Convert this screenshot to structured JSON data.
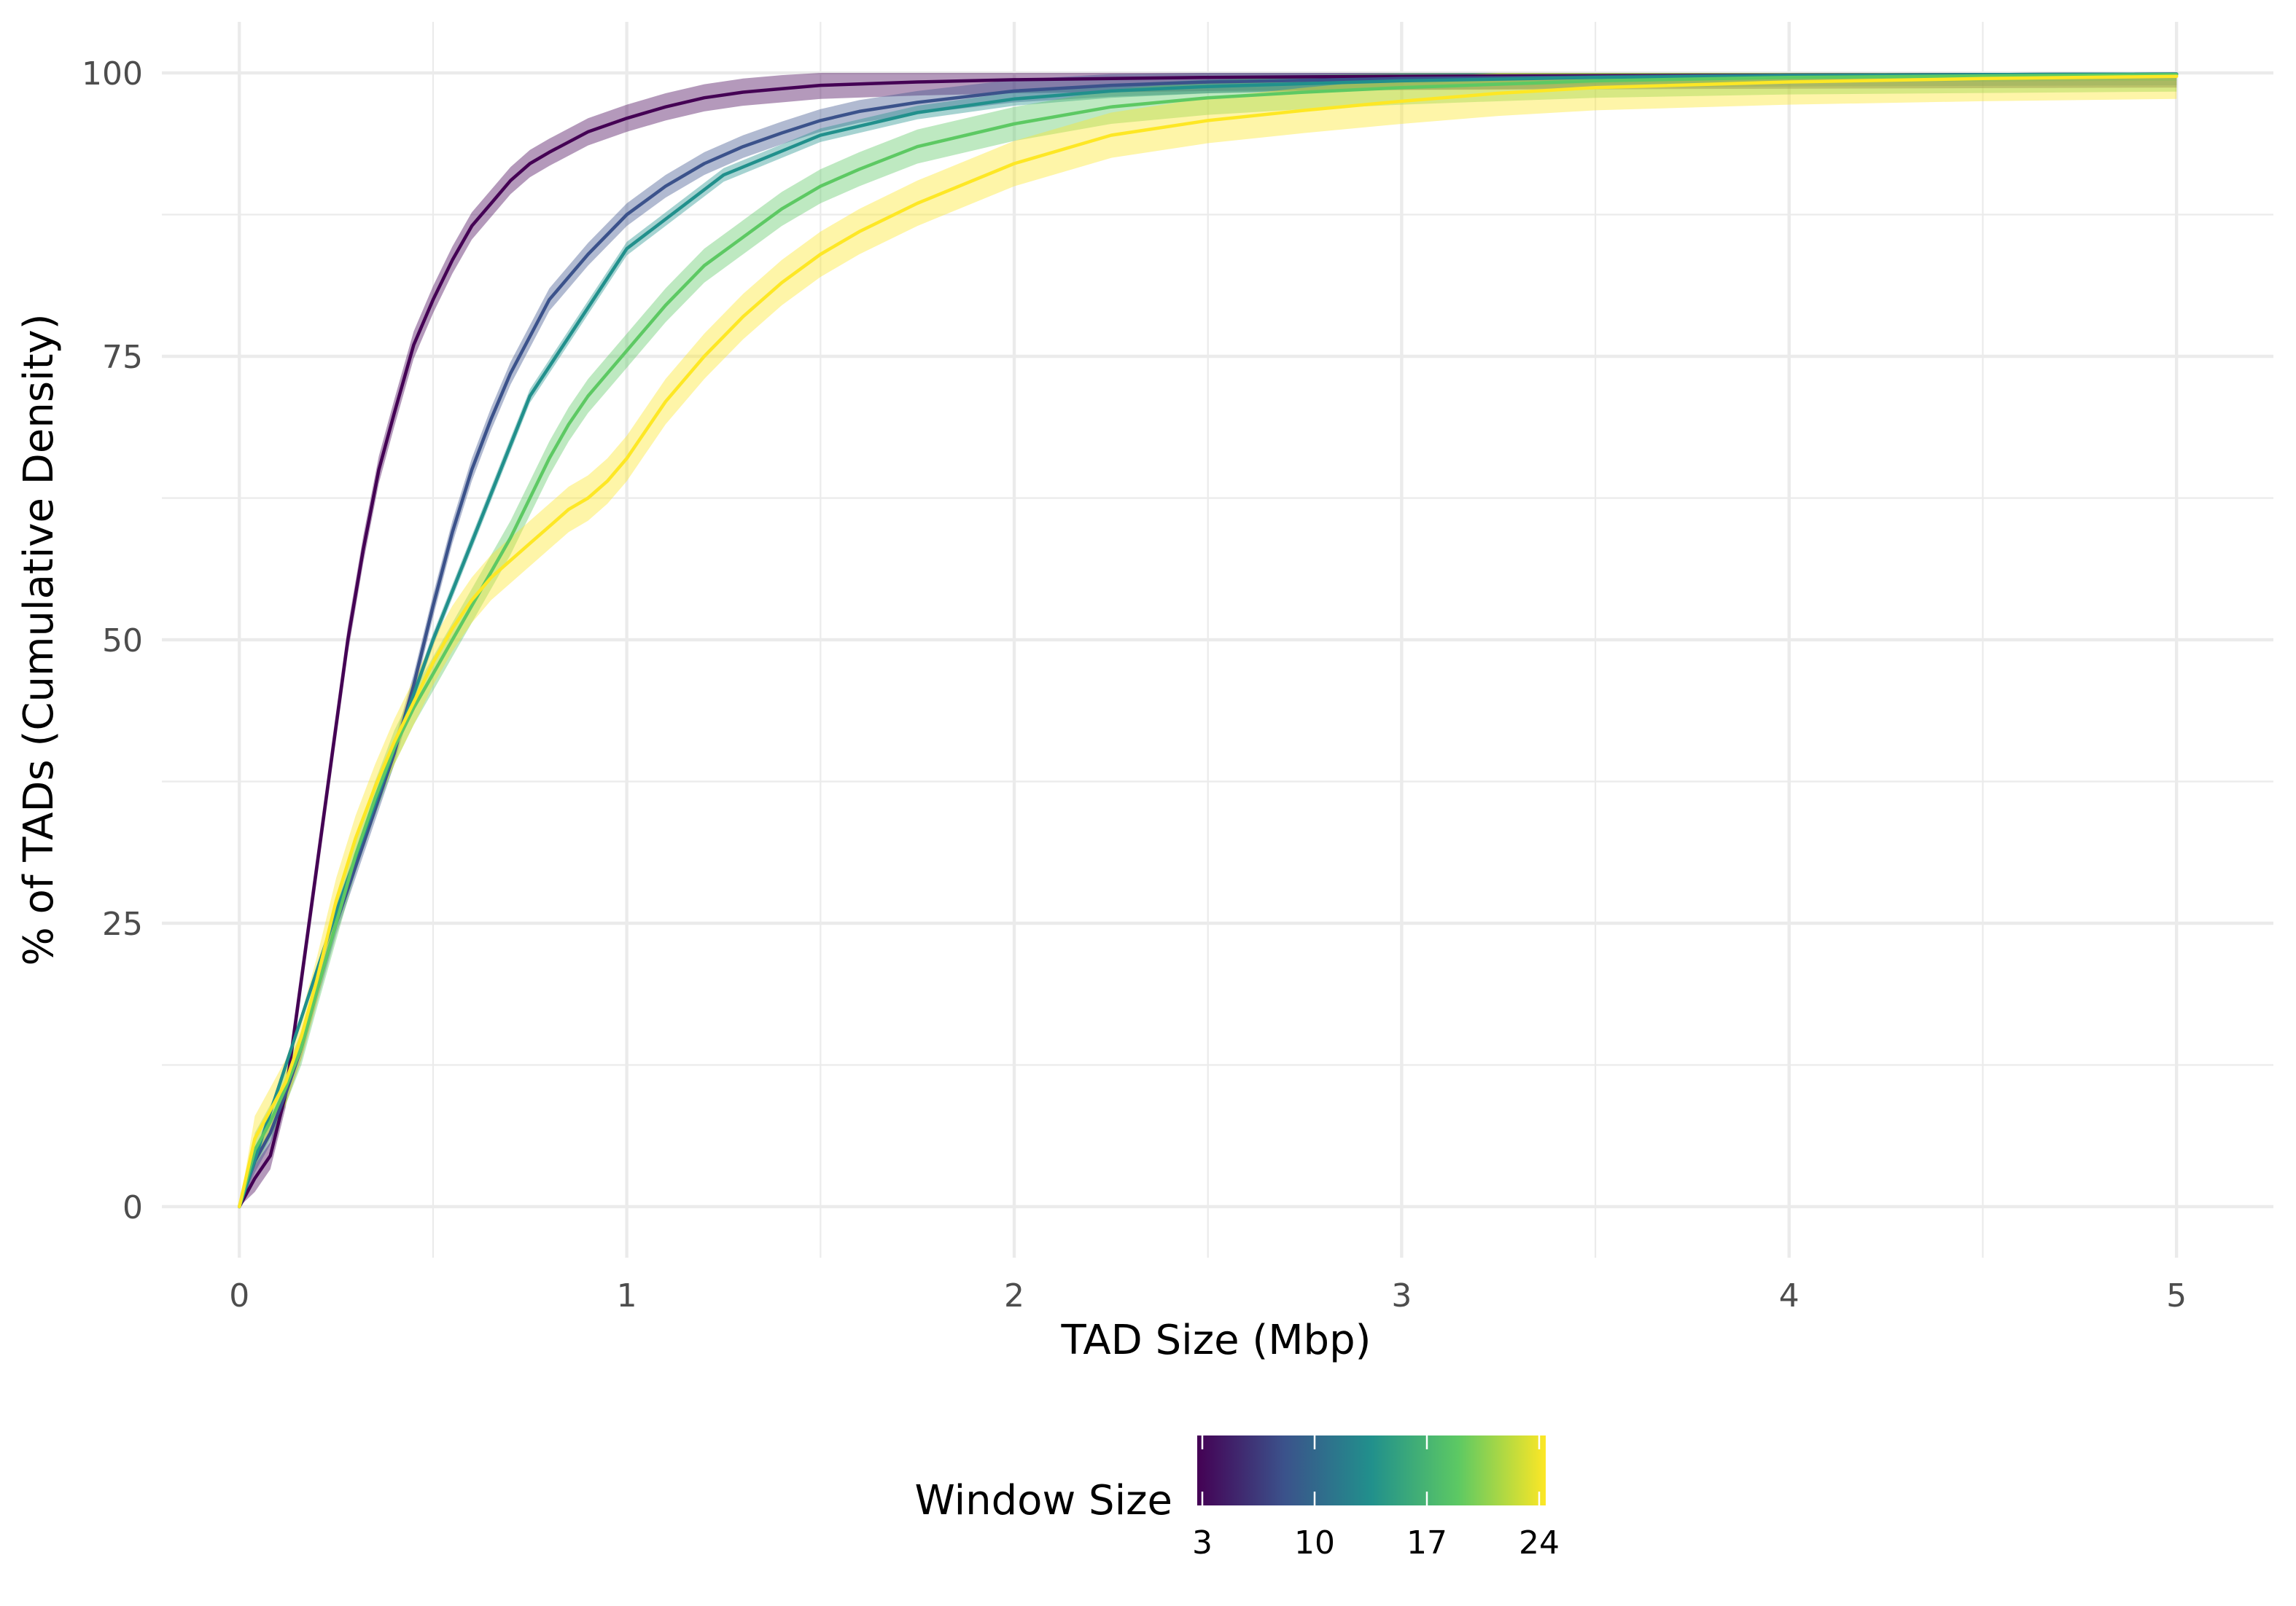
{
  "chart_data": {
    "type": "line",
    "title": "",
    "xlabel": "TAD Size (Mbp)",
    "ylabel": "% of TADs (Cumulative Density)",
    "xlim": [
      -0.2,
      5.25
    ],
    "ylim": [
      -4.5,
      104.5
    ],
    "x_ticks": [
      0,
      1,
      2,
      3,
      4,
      5
    ],
    "x_tick_labels": [
      "0",
      "1",
      "2",
      "3",
      "4",
      "5"
    ],
    "y_ticks": [
      0,
      25,
      50,
      75,
      100
    ],
    "y_tick_labels": [
      "0",
      "25",
      "50",
      "75",
      "100"
    ],
    "grid": true,
    "legend": {
      "title": "Window Size",
      "position": "bottom",
      "type": "colorbar",
      "range": [
        3,
        24
      ],
      "ticks": [
        3,
        10,
        17,
        24
      ],
      "tick_labels": [
        "3",
        "10",
        "17",
        "24"
      ],
      "colormap": "viridis",
      "colors": [
        "#440154",
        "#3b528b",
        "#21908c",
        "#5dc963",
        "#fde725"
      ]
    },
    "series": [
      {
        "color": "#440154",
        "ribbon_width": 1.2,
        "x": [
          0,
          0.04,
          0.08,
          0.12,
          0.16,
          0.2,
          0.24,
          0.28,
          0.32,
          0.36,
          0.4,
          0.45,
          0.5,
          0.55,
          0.6,
          0.65,
          0.7,
          0.75,
          0.8,
          0.9,
          1.0,
          1.1,
          1.2,
          1.3,
          1.4,
          1.5,
          1.75,
          2.0,
          2.5,
          3.0,
          4.0,
          5.0
        ],
        "y": [
          0,
          2.5,
          4.5,
          10,
          20,
          30,
          40,
          50,
          58,
          65,
          70,
          76,
          80,
          83.5,
          86.5,
          88.5,
          90.5,
          92,
          93,
          94.8,
          96,
          97,
          97.8,
          98.3,
          98.6,
          98.9,
          99.2,
          99.4,
          99.6,
          99.7,
          99.8,
          99.9
        ]
      },
      {
        "color": "#3b528b",
        "ribbon_width": 1.0,
        "x": [
          0,
          0.04,
          0.08,
          0.12,
          0.16,
          0.2,
          0.25,
          0.3,
          0.35,
          0.4,
          0.45,
          0.5,
          0.55,
          0.6,
          0.65,
          0.7,
          0.8,
          0.9,
          1.0,
          1.1,
          1.2,
          1.3,
          1.4,
          1.5,
          1.6,
          1.75,
          2.0,
          2.25,
          2.5,
          3.0,
          4.0,
          5.0
        ],
        "y": [
          0,
          4,
          6.5,
          10,
          14,
          19,
          25,
          30,
          35,
          40,
          46,
          53,
          59.5,
          65,
          69.5,
          73.5,
          80,
          84,
          87.5,
          90,
          92,
          93.5,
          94.7,
          95.8,
          96.6,
          97.4,
          98.4,
          98.9,
          99.2,
          99.5,
          99.8,
          99.9
        ]
      },
      {
        "color": "#21908c",
        "ribbon_width": 0.6,
        "x": [
          0,
          0.25,
          0.5,
          0.75,
          1.0,
          1.25,
          1.5,
          1.75,
          2.0,
          2.25,
          2.5,
          3.0,
          3.5,
          4.0,
          4.5,
          5.0
        ],
        "y": [
          0,
          26,
          50,
          71.5,
          84.5,
          91,
          94.5,
          96.5,
          97.7,
          98.4,
          98.8,
          99.3,
          99.6,
          99.75,
          99.85,
          99.9
        ]
      },
      {
        "color": "#5dc963",
        "ribbon_width": 1.5,
        "x": [
          0,
          0.04,
          0.08,
          0.12,
          0.16,
          0.2,
          0.25,
          0.3,
          0.35,
          0.4,
          0.45,
          0.5,
          0.55,
          0.6,
          0.65,
          0.7,
          0.75,
          0.8,
          0.85,
          0.9,
          0.95,
          1.0,
          1.1,
          1.2,
          1.3,
          1.4,
          1.5,
          1.6,
          1.75,
          2.0,
          2.25,
          2.5,
          2.75,
          3.0,
          3.5,
          4.0,
          5.0
        ],
        "y": [
          0,
          5,
          7.5,
          10.5,
          14,
          19,
          25,
          31,
          36,
          40.5,
          44,
          47,
          50,
          53,
          56,
          59,
          62.5,
          66,
          69,
          71.5,
          73.5,
          75.5,
          79.5,
          83,
          85.5,
          88,
          90,
          91.5,
          93.5,
          95.5,
          97,
          97.8,
          98.3,
          98.7,
          99.3,
          99.6,
          99.85
        ]
      },
      {
        "color": "#fde725",
        "ribbon_width": 2.0,
        "x": [
          0,
          0.04,
          0.08,
          0.12,
          0.16,
          0.2,
          0.25,
          0.3,
          0.35,
          0.4,
          0.45,
          0.5,
          0.55,
          0.6,
          0.65,
          0.7,
          0.75,
          0.8,
          0.85,
          0.9,
          0.95,
          1.0,
          1.05,
          1.1,
          1.2,
          1.3,
          1.4,
          1.5,
          1.6,
          1.75,
          2.0,
          2.25,
          2.5,
          2.75,
          3.0,
          3.25,
          3.5,
          4.0,
          4.5,
          5.0
        ],
        "y": [
          0,
          6,
          8.5,
          11,
          15,
          20,
          27,
          32.5,
          37,
          41,
          44.5,
          48,
          51,
          53.5,
          55.5,
          57,
          58.5,
          60,
          61.5,
          62.5,
          64,
          66,
          68.5,
          71,
          75,
          78.5,
          81.5,
          84,
          86,
          88.5,
          92,
          94.5,
          95.8,
          96.7,
          97.5,
          98.2,
          98.7,
          99.2,
          99.5,
          99.7
        ]
      }
    ]
  }
}
